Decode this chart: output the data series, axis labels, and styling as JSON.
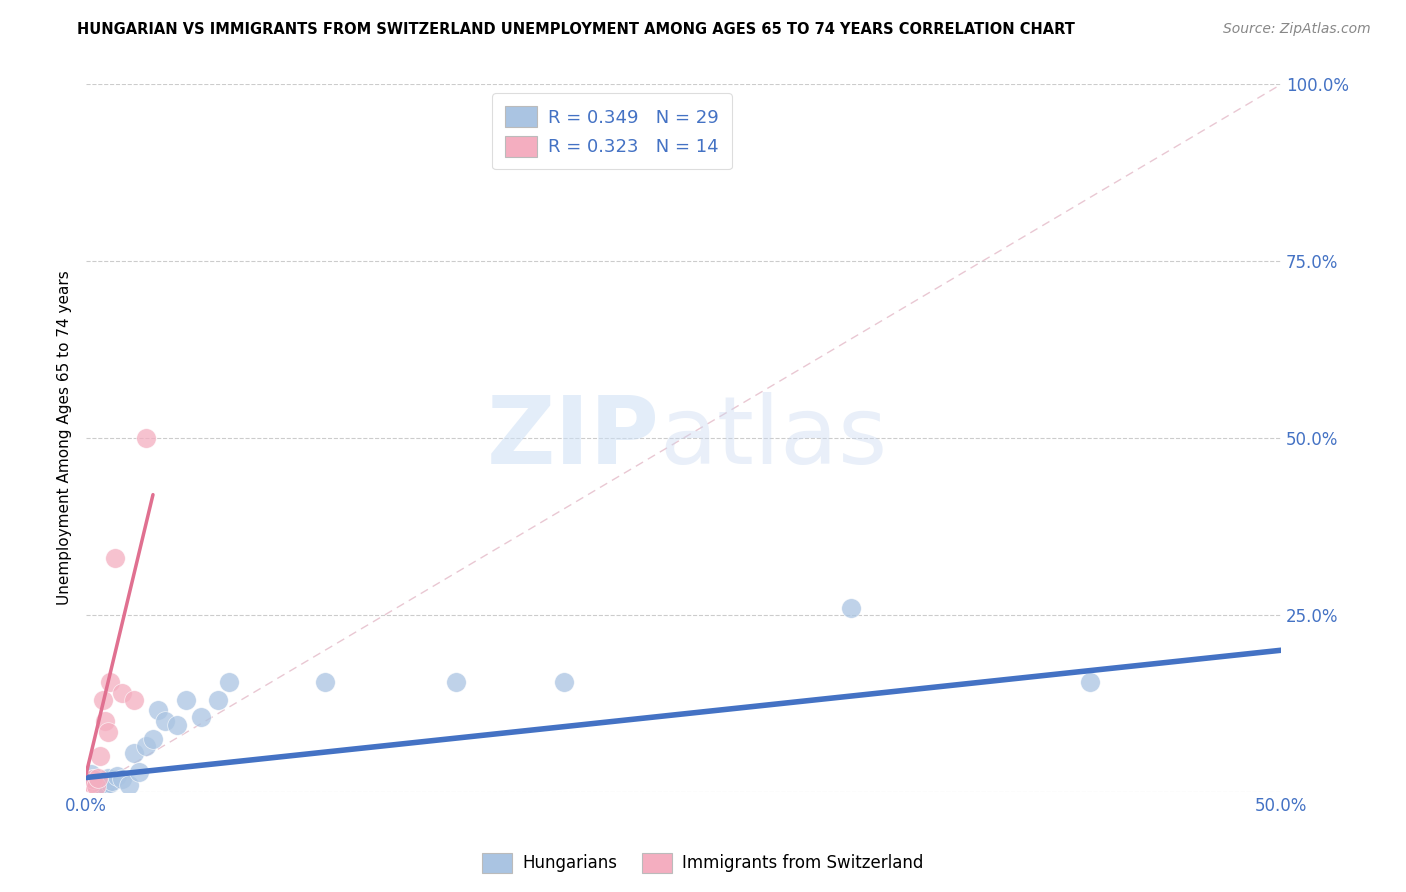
{
  "title": "HUNGARIAN VS IMMIGRANTS FROM SWITZERLAND UNEMPLOYMENT AMONG AGES 65 TO 74 YEARS CORRELATION CHART",
  "source": "Source: ZipAtlas.com",
  "ylabel": "Unemployment Among Ages 65 to 74 years",
  "xlim": [
    0.0,
    0.5
  ],
  "ylim": [
    0.0,
    1.0
  ],
  "x_ticks": [
    0.0,
    0.1,
    0.2,
    0.3,
    0.4,
    0.5
  ],
  "y_ticks": [
    0.0,
    0.25,
    0.5,
    0.75,
    1.0
  ],
  "right_y_tick_labels": [
    "",
    "25.0%",
    "50.0%",
    "75.0%",
    "100.0%"
  ],
  "blue_R": 0.349,
  "blue_N": 29,
  "pink_R": 0.323,
  "pink_N": 14,
  "blue_color": "#aac4e2",
  "pink_color": "#f4aec0",
  "blue_line_color": "#4472c4",
  "pink_line_color": "#e07090",
  "ref_line_color": "#e0b0c0",
  "blue_scatter_x": [
    0.002,
    0.003,
    0.004,
    0.005,
    0.006,
    0.007,
    0.008,
    0.009,
    0.01,
    0.011,
    0.013,
    0.015,
    0.018,
    0.02,
    0.022,
    0.025,
    0.028,
    0.03,
    0.033,
    0.038,
    0.042,
    0.048,
    0.055,
    0.06,
    0.1,
    0.155,
    0.2,
    0.32,
    0.42
  ],
  "blue_scatter_y": [
    0.025,
    0.018,
    0.012,
    0.015,
    0.01,
    0.008,
    0.01,
    0.02,
    0.012,
    0.015,
    0.022,
    0.018,
    0.01,
    0.055,
    0.028,
    0.065,
    0.075,
    0.115,
    0.1,
    0.095,
    0.13,
    0.105,
    0.13,
    0.155,
    0.155,
    0.155,
    0.155,
    0.26,
    0.155
  ],
  "pink_scatter_x": [
    0.001,
    0.002,
    0.003,
    0.004,
    0.005,
    0.006,
    0.007,
    0.008,
    0.009,
    0.01,
    0.012,
    0.015,
    0.02,
    0.025
  ],
  "pink_scatter_y": [
    0.015,
    0.012,
    0.018,
    0.008,
    0.02,
    0.05,
    0.13,
    0.1,
    0.085,
    0.155,
    0.33,
    0.14,
    0.13,
    0.5
  ],
  "blue_trend_x": [
    0.0,
    0.5
  ],
  "blue_trend_y": [
    0.02,
    0.2
  ],
  "pink_trend_x": [
    0.0,
    0.028
  ],
  "pink_trend_y": [
    0.025,
    0.42
  ],
  "ref_line_x": [
    0.0,
    0.5
  ],
  "ref_line_y": [
    0.0,
    1.0
  ]
}
